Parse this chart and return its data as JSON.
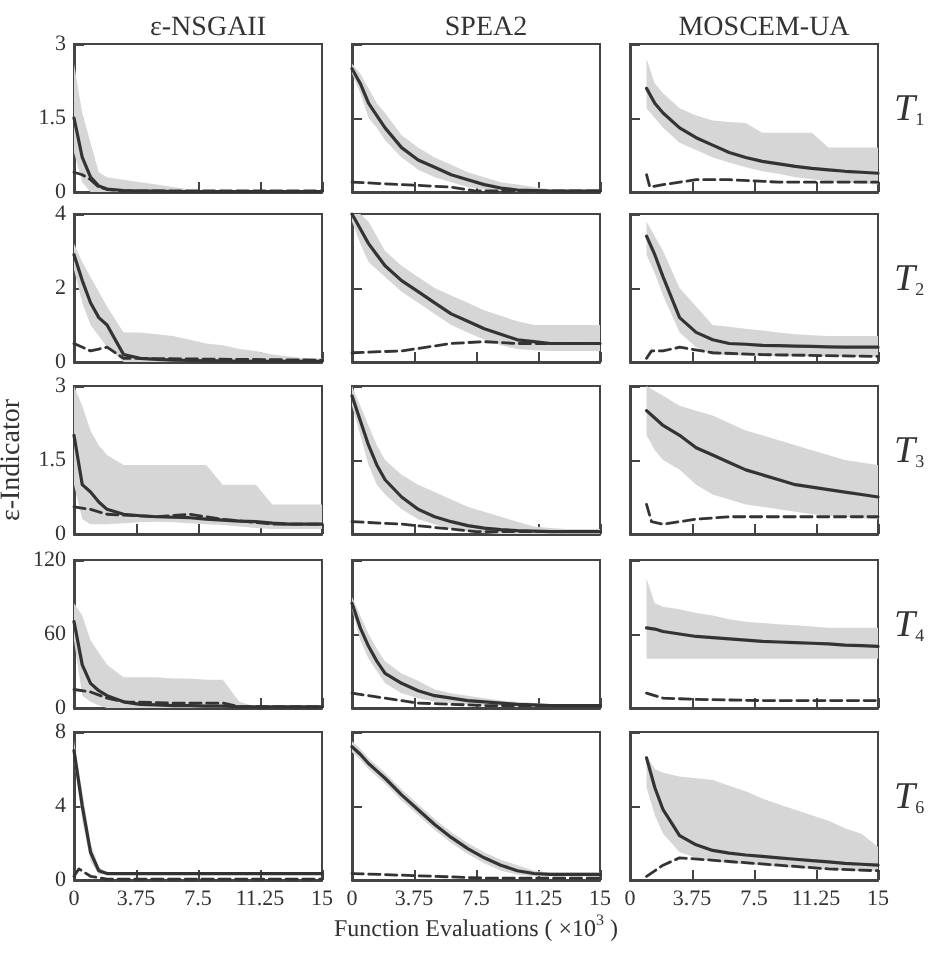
{
  "chart_data": [
    {
      "type": "line",
      "title": "ε-NSGAII",
      "tick_labels": "y",
      "x": [
        0,
        0.5,
        1,
        1.5,
        2,
        3,
        4,
        5,
        6,
        7,
        8,
        9,
        10,
        11,
        12,
        13,
        14,
        15
      ],
      "xlim": [
        0,
        15
      ],
      "xticks": [
        0,
        3.75,
        7.5,
        11.25,
        15
      ],
      "ylim": [
        0,
        3
      ],
      "yticks": [
        0,
        1.5,
        3
      ],
      "series": [
        {
          "color": "#333333",
          "values": [
            1.5,
            0.7,
            0.3,
            0.12,
            0.06,
            0.03,
            0.02,
            0.02,
            0.01,
            0.01,
            0.01,
            0.01,
            0.01,
            0.01,
            0.01,
            0.01,
            0.01,
            0.01
          ],
          "lower": [
            0.8,
            0.2,
            0,
            0,
            0,
            0,
            0,
            0,
            0,
            0,
            0,
            0,
            0,
            0,
            0,
            0,
            0,
            0
          ],
          "upper": [
            2.6,
            1.6,
            1.0,
            0.4,
            0.3,
            0.25,
            0.2,
            0.15,
            0.1,
            0.05,
            0.03,
            0.02,
            0.02,
            0.02,
            0.02,
            0.02,
            0.02,
            0.02
          ]
        },
        {
          "color": "#333333",
          "line_style": "dashed",
          "x": [
            0,
            0.5,
            1,
            1.5,
            2,
            3,
            15
          ],
          "values": [
            0.4,
            0.35,
            0.25,
            0.1,
            0.05,
            0.02,
            0.02
          ]
        }
      ]
    },
    {
      "type": "line",
      "title": "SPEA2",
      "tick_labels": false,
      "x": [
        0,
        0.5,
        1,
        1.5,
        2,
        3,
        4,
        5,
        6,
        7,
        8,
        9,
        10,
        11,
        12,
        13,
        14,
        15
      ],
      "xlim": [
        0,
        15
      ],
      "xticks": [
        0,
        3.75,
        7.5,
        11.25,
        15
      ],
      "ylim": [
        0,
        3
      ],
      "yticks": [
        0,
        1.5,
        3
      ],
      "series": [
        {
          "color": "#333333",
          "values": [
            2.5,
            2.2,
            1.8,
            1.55,
            1.3,
            0.9,
            0.65,
            0.5,
            0.35,
            0.25,
            0.15,
            0.08,
            0.04,
            0.03,
            0.02,
            0.02,
            0.02,
            0.02
          ],
          "lower": [
            2.4,
            2.0,
            1.5,
            1.3,
            1.05,
            0.7,
            0.45,
            0.3,
            0.2,
            0.1,
            0.05,
            0.02,
            0,
            0,
            0,
            0,
            0,
            0
          ],
          "upper": [
            2.6,
            2.4,
            2.1,
            1.8,
            1.6,
            1.15,
            0.9,
            0.7,
            0.55,
            0.4,
            0.3,
            0.2,
            0.15,
            0.1,
            0.05,
            0.03,
            0.03,
            0.03
          ]
        },
        {
          "color": "#333333",
          "line_style": "dashed",
          "x": [
            0,
            3,
            6,
            7.5,
            9,
            15
          ],
          "values": [
            0.2,
            0.15,
            0.1,
            0.02,
            0.02,
            0.02
          ]
        }
      ]
    },
    {
      "type": "line",
      "title": "MOSCEM-UA",
      "annotations": [
        "T$_{1}$"
      ],
      "tick_labels": false,
      "x": [
        1,
        1.5,
        2,
        3,
        4,
        5,
        6,
        7,
        8,
        9,
        10,
        11,
        12,
        13,
        14,
        15
      ],
      "xlim": [
        0,
        15
      ],
      "xticks": [
        0,
        3.75,
        7.5,
        11.25,
        15
      ],
      "ylim": [
        0,
        3
      ],
      "yticks": [
        0,
        1.5,
        3
      ],
      "series": [
        {
          "color": "#333333",
          "values": [
            2.1,
            1.8,
            1.6,
            1.3,
            1.1,
            0.95,
            0.8,
            0.7,
            0.62,
            0.57,
            0.52,
            0.48,
            0.45,
            0.42,
            0.4,
            0.38
          ],
          "lower": [
            1.7,
            1.5,
            1.3,
            1.0,
            0.85,
            0.7,
            0.6,
            0.5,
            0.42,
            0.37,
            0.3,
            0.26,
            0.22,
            0.2,
            0.17,
            0.15
          ],
          "upper": [
            2.7,
            2.2,
            2.0,
            1.7,
            1.55,
            1.45,
            1.42,
            1.4,
            1.2,
            1.2,
            1.2,
            1.2,
            0.9,
            0.9,
            0.9,
            0.9
          ]
        },
        {
          "color": "#333333",
          "line_style": "dashed",
          "x": [
            1,
            1.2,
            2,
            4,
            6,
            9,
            15
          ],
          "values": [
            0.35,
            0.1,
            0.15,
            0.25,
            0.25,
            0.2,
            0.2
          ]
        }
      ]
    },
    {
      "type": "line",
      "tick_labels": "y",
      "x": [
        0,
        0.5,
        1,
        1.5,
        2,
        3,
        4,
        5,
        6,
        7,
        8,
        9,
        10,
        11,
        12,
        13,
        14,
        15
      ],
      "xlim": [
        0,
        15
      ],
      "xticks": [
        0,
        3.75,
        7.5,
        11.25,
        15
      ],
      "ylim": [
        0,
        4
      ],
      "yticks": [
        0,
        2,
        4
      ],
      "series": [
        {
          "color": "#333333",
          "values": [
            2.9,
            2.2,
            1.6,
            1.2,
            1.0,
            0.2,
            0.1,
            0.07,
            0.05,
            0.04,
            0.03,
            0.03,
            0.02,
            0.02,
            0.02,
            0.02,
            0.02,
            0.02
          ],
          "lower": [
            2.5,
            1.6,
            1.0,
            0.7,
            0.4,
            0,
            0,
            0,
            0,
            0,
            0,
            0,
            0,
            0,
            0,
            0,
            0,
            0
          ],
          "upper": [
            3.2,
            2.7,
            2.3,
            1.9,
            1.5,
            0.8,
            0.8,
            0.75,
            0.7,
            0.6,
            0.5,
            0.45,
            0.35,
            0.3,
            0.2,
            0.15,
            0.1,
            0.1
          ]
        },
        {
          "color": "#333333",
          "line_style": "dashed",
          "x": [
            0,
            1,
            1.5,
            2,
            3,
            15
          ],
          "values": [
            0.5,
            0.3,
            0.35,
            0.4,
            0.1,
            0.05
          ]
        }
      ]
    },
    {
      "type": "line",
      "tick_labels": false,
      "x": [
        0,
        0.5,
        1,
        1.5,
        2,
        3,
        4,
        5,
        6,
        7,
        8,
        9,
        10,
        11,
        12,
        13,
        14,
        15
      ],
      "xlim": [
        0,
        15
      ],
      "xticks": [
        0,
        3.75,
        7.5,
        11.25,
        15
      ],
      "ylim": [
        0,
        4
      ],
      "yticks": [
        0,
        2,
        4
      ],
      "series": [
        {
          "color": "#333333",
          "values": [
            4,
            3.6,
            3.2,
            2.9,
            2.6,
            2.2,
            1.9,
            1.6,
            1.3,
            1.1,
            0.9,
            0.75,
            0.6,
            0.55,
            0.5,
            0.5,
            0.5,
            0.5
          ],
          "lower": [
            3.8,
            3.2,
            2.7,
            2.5,
            2.3,
            1.9,
            1.6,
            1.3,
            1.0,
            0.8,
            0.6,
            0.45,
            0.35,
            0.32,
            0.3,
            0.3,
            0.3,
            0.3
          ],
          "upper": [
            4,
            4,
            3.8,
            3.4,
            3.0,
            2.6,
            2.3,
            2.0,
            1.8,
            1.6,
            1.4,
            1.25,
            1.1,
            1.0,
            1.0,
            1.0,
            1.0,
            1.0
          ]
        },
        {
          "color": "#333333",
          "line_style": "dashed",
          "x": [
            0,
            3,
            6,
            8,
            10,
            15
          ],
          "values": [
            0.25,
            0.3,
            0.5,
            0.55,
            0.5,
            0.5
          ]
        }
      ]
    },
    {
      "type": "line",
      "annotations": [
        "T$_{2}$"
      ],
      "tick_labels": false,
      "x": [
        1,
        1.5,
        2,
        3,
        4,
        5,
        6,
        7,
        8,
        9,
        10,
        11,
        12,
        13,
        14,
        15
      ],
      "xlim": [
        0,
        15
      ],
      "xticks": [
        0,
        3.75,
        7.5,
        11.25,
        15
      ],
      "ylim": [
        0,
        4
      ],
      "yticks": [
        0,
        2,
        4
      ],
      "series": [
        {
          "color": "#333333",
          "values": [
            3.4,
            2.9,
            2.3,
            1.2,
            0.8,
            0.6,
            0.5,
            0.48,
            0.45,
            0.44,
            0.43,
            0.42,
            0.41,
            0.4,
            0.4,
            0.4
          ],
          "lower": [
            2.9,
            2.4,
            1.8,
            0.8,
            0.4,
            0.2,
            0.18,
            0.17,
            0.16,
            0.15,
            0.15,
            0.15,
            0.15,
            0.15,
            0.15,
            0.15
          ],
          "upper": [
            3.8,
            3.4,
            3.0,
            2.0,
            1.5,
            1.0,
            0.95,
            0.9,
            0.85,
            0.8,
            0.75,
            0.72,
            0.7,
            0.7,
            0.7,
            0.7
          ]
        },
        {
          "color": "#333333",
          "line_style": "dashed",
          "x": [
            1,
            1.3,
            2,
            3,
            5,
            8,
            15
          ],
          "values": [
            0.1,
            0.3,
            0.3,
            0.4,
            0.25,
            0.2,
            0.15
          ]
        }
      ]
    },
    {
      "type": "line",
      "ylabel": "ε-Indicator",
      "tick_labels": "y",
      "x": [
        0,
        0.5,
        1,
        1.5,
        2,
        3,
        4,
        5,
        6,
        7,
        8,
        9,
        10,
        11,
        12,
        13,
        14,
        15
      ],
      "xlim": [
        0,
        15
      ],
      "xticks": [
        0,
        3.75,
        7.5,
        11.25,
        15
      ],
      "ylim": [
        0,
        3
      ],
      "yticks": [
        0,
        1.5,
        3
      ],
      "series": [
        {
          "color": "#333333",
          "values": [
            2.0,
            1.0,
            0.85,
            0.65,
            0.5,
            0.4,
            0.37,
            0.35,
            0.34,
            0.33,
            0.3,
            0.28,
            0.26,
            0.25,
            0.22,
            0.2,
            0.2,
            0.2
          ],
          "lower": [
            1.0,
            0.3,
            0.2,
            0.2,
            0.2,
            0.22,
            0.24,
            0.25,
            0.24,
            0.22,
            0.2,
            0.18,
            0.15,
            0.12,
            0.1,
            0.1,
            0.1,
            0.1
          ],
          "upper": [
            3.0,
            2.6,
            2.1,
            1.8,
            1.6,
            1.4,
            1.4,
            1.4,
            1.4,
            1.4,
            1.4,
            1.0,
            1.0,
            1.0,
            0.6,
            0.6,
            0.6,
            0.6
          ]
        },
        {
          "color": "#333333",
          "line_style": "dashed",
          "x": [
            0,
            1,
            2,
            5,
            7,
            9,
            12,
            15
          ],
          "values": [
            0.55,
            0.5,
            0.4,
            0.35,
            0.4,
            0.3,
            0.2,
            0.2
          ]
        }
      ]
    },
    {
      "type": "line",
      "tick_labels": false,
      "x": [
        0,
        0.5,
        1,
        1.5,
        2,
        3,
        4,
        5,
        6,
        7,
        8,
        9,
        10,
        11,
        12,
        13,
        14,
        15
      ],
      "xlim": [
        0,
        15
      ],
      "xticks": [
        0,
        3.75,
        7.5,
        11.25,
        15
      ],
      "ylim": [
        0,
        3
      ],
      "yticks": [
        0,
        1.5,
        3
      ],
      "series": [
        {
          "color": "#333333",
          "values": [
            2.8,
            2.3,
            1.8,
            1.4,
            1.1,
            0.75,
            0.5,
            0.35,
            0.25,
            0.17,
            0.12,
            0.09,
            0.07,
            0.06,
            0.05,
            0.05,
            0.05,
            0.05
          ],
          "lower": [
            2.6,
            2.0,
            1.4,
            1.0,
            0.8,
            0.5,
            0.3,
            0.2,
            0.1,
            0.05,
            0.02,
            0,
            0,
            0,
            0,
            0,
            0,
            0
          ],
          "upper": [
            3.0,
            2.6,
            2.2,
            1.8,
            1.5,
            1.2,
            1.0,
            0.85,
            0.7,
            0.55,
            0.45,
            0.35,
            0.25,
            0.15,
            0.12,
            0.1,
            0.1,
            0.1
          ]
        },
        {
          "color": "#333333",
          "line_style": "dashed",
          "x": [
            0,
            3,
            6,
            7.5,
            15
          ],
          "values": [
            0.25,
            0.2,
            0.1,
            0.05,
            0.05
          ]
        }
      ]
    },
    {
      "type": "line",
      "annotations": [
        "T$_{3}$"
      ],
      "tick_labels": false,
      "x": [
        1,
        1.5,
        2,
        3,
        4,
        5,
        6,
        7,
        8,
        9,
        10,
        11,
        12,
        13,
        14,
        15
      ],
      "xlim": [
        0,
        15
      ],
      "xticks": [
        0,
        3.75,
        7.5,
        11.25,
        15
      ],
      "ylim": [
        0,
        3
      ],
      "yticks": [
        0,
        1.5,
        3
      ],
      "series": [
        {
          "color": "#333333",
          "values": [
            2.5,
            2.35,
            2.2,
            2.0,
            1.75,
            1.6,
            1.45,
            1.3,
            1.2,
            1.1,
            1.0,
            0.95,
            0.9,
            0.85,
            0.8,
            0.75
          ],
          "lower": [
            2.0,
            1.7,
            1.5,
            1.3,
            1.0,
            0.8,
            0.7,
            0.6,
            0.55,
            0.5,
            0.45,
            0.4,
            0.37,
            0.35,
            0.32,
            0.3
          ],
          "upper": [
            3.0,
            2.9,
            2.8,
            2.6,
            2.5,
            2.4,
            2.25,
            2.1,
            2.0,
            1.9,
            1.8,
            1.7,
            1.6,
            1.5,
            1.45,
            1.4
          ]
        },
        {
          "color": "#333333",
          "line_style": "dashed",
          "x": [
            1,
            1.3,
            2,
            4,
            6,
            10,
            15
          ],
          "values": [
            0.6,
            0.25,
            0.2,
            0.3,
            0.35,
            0.35,
            0.35
          ]
        }
      ]
    },
    {
      "type": "line",
      "tick_labels": "y",
      "x": [
        0,
        0.5,
        1,
        1.5,
        2,
        3,
        4,
        5,
        6,
        7,
        8,
        9,
        10,
        11,
        12,
        13,
        14,
        15
      ],
      "xlim": [
        0,
        15
      ],
      "xticks": [
        0,
        3.75,
        7.5,
        11.25,
        15
      ],
      "ylim": [
        0,
        120
      ],
      "yticks": [
        0,
        60,
        120
      ],
      "series": [
        {
          "color": "#333333",
          "values": [
            70,
            35,
            20,
            14,
            10,
            5,
            3,
            2.5,
            2,
            2,
            1.5,
            1.5,
            1,
            1,
            1,
            1,
            1,
            1
          ],
          "lower": [
            55,
            10,
            5,
            2,
            0,
            0,
            0,
            0,
            0,
            0,
            0,
            0,
            0,
            0,
            0,
            0,
            0,
            0
          ],
          "upper": [
            85,
            75,
            55,
            45,
            35,
            25,
            25,
            25,
            24,
            24,
            23,
            23,
            5,
            1,
            1,
            1,
            1,
            1
          ]
        },
        {
          "color": "#333333",
          "line_style": "dashed",
          "x": [
            0,
            1,
            2,
            3,
            6,
            9,
            10,
            15
          ],
          "values": [
            15,
            13,
            8,
            5,
            4,
            4,
            1,
            1
          ]
        }
      ]
    },
    {
      "type": "line",
      "tick_labels": false,
      "x": [
        0,
        0.5,
        1,
        1.5,
        2,
        3,
        4,
        5,
        6,
        7,
        8,
        9,
        10,
        11,
        12,
        13,
        14,
        15
      ],
      "xlim": [
        0,
        15
      ],
      "xticks": [
        0,
        3.75,
        7.5,
        11.25,
        15
      ],
      "ylim": [
        0,
        120
      ],
      "yticks": [
        0,
        60,
        120
      ],
      "series": [
        {
          "color": "#333333",
          "values": [
            85,
            65,
            50,
            38,
            28,
            20,
            14,
            10,
            8,
            6,
            5,
            4,
            3,
            2.5,
            2,
            2,
            2,
            2
          ],
          "lower": [
            80,
            55,
            40,
            30,
            20,
            12,
            8,
            5,
            4,
            3,
            2,
            1.5,
            1,
            1,
            1,
            1,
            1,
            1
          ],
          "upper": [
            90,
            75,
            60,
            48,
            38,
            28,
            22,
            15,
            12,
            10,
            8,
            6,
            5,
            4,
            3,
            3,
            3,
            3
          ]
        },
        {
          "color": "#333333",
          "line_style": "dashed",
          "x": [
            0,
            2,
            4,
            8,
            15
          ],
          "values": [
            12,
            8,
            4,
            2,
            2
          ]
        }
      ]
    },
    {
      "type": "line",
      "annotations": [
        "T$_{4}$"
      ],
      "tick_labels": false,
      "x": [
        1,
        1.5,
        2,
        3,
        4,
        5,
        6,
        7,
        8,
        9,
        10,
        11,
        12,
        13,
        14,
        15
      ],
      "xlim": [
        0,
        15
      ],
      "xticks": [
        0,
        3.75,
        7.5,
        11.25,
        15
      ],
      "ylim": [
        0,
        120
      ],
      "yticks": [
        0,
        60,
        120
      ],
      "series": [
        {
          "color": "#333333",
          "values": [
            65,
            64,
            62,
            60,
            58,
            57,
            56,
            55,
            54,
            53.5,
            53,
            52.5,
            52,
            51,
            50.5,
            50
          ],
          "lower": [
            40,
            40,
            40,
            40,
            40,
            40,
            40,
            40,
            40,
            40,
            40,
            40,
            40,
            40,
            40,
            40
          ],
          "upper": [
            105,
            85,
            82,
            80,
            77,
            75,
            72,
            70,
            69,
            68,
            67,
            66,
            65,
            65,
            65,
            65
          ]
        },
        {
          "color": "#333333",
          "line_style": "dashed",
          "x": [
            1,
            2,
            4,
            8,
            15
          ],
          "values": [
            12,
            8,
            7,
            6,
            6
          ]
        }
      ]
    },
    {
      "type": "line",
      "x": [
        0,
        0.5,
        1,
        1.5,
        2,
        3,
        4,
        5,
        6,
        7,
        8,
        9,
        10,
        11,
        12,
        13,
        14,
        15
      ],
      "xlim": [
        0,
        15
      ],
      "xticks": [
        0,
        3.75,
        7.5,
        11.25,
        15
      ],
      "ylim": [
        0,
        8
      ],
      "yticks": [
        0,
        4,
        8
      ],
      "series": [
        {
          "color": "#333333",
          "values": [
            7,
            4,
            1.5,
            0.5,
            0.35,
            0.35,
            0.35,
            0.35,
            0.35,
            0.35,
            0.35,
            0.35,
            0.35,
            0.35,
            0.35,
            0.35,
            0.35,
            0.35
          ],
          "lower": [
            6.5,
            3.2,
            1,
            0.3,
            0.3,
            0.3,
            0.3,
            0.3,
            0.3,
            0.3,
            0.3,
            0.3,
            0.3,
            0.3,
            0.3,
            0.3,
            0.3,
            0.3
          ],
          "upper": [
            7.5,
            4.8,
            2,
            0.7,
            0.4,
            0.4,
            0.4,
            0.4,
            0.4,
            0.4,
            0.4,
            0.4,
            0.4,
            0.4,
            0.4,
            0.4,
            0.4,
            0.4
          ]
        },
        {
          "color": "#333333",
          "line_style": "dashed",
          "x": [
            0,
            0.3,
            1,
            2,
            15
          ],
          "values": [
            0.2,
            0.6,
            0.2,
            0.05,
            0.05
          ]
        }
      ]
    },
    {
      "type": "line",
      "xlabel": "Function Evaluations ( ×10$^{3}$ )",
      "tick_labels": "x",
      "x": [
        0,
        0.5,
        1,
        1.5,
        2,
        3,
        4,
        5,
        6,
        7,
        8,
        9,
        10,
        11,
        12,
        13,
        14,
        15
      ],
      "xlim": [
        0,
        15
      ],
      "xticks": [
        0,
        3.75,
        7.5,
        11.25,
        15
      ],
      "ylim": [
        0,
        8
      ],
      "yticks": [
        0,
        4,
        8
      ],
      "series": [
        {
          "color": "#333333",
          "values": [
            7.2,
            6.8,
            6.3,
            5.9,
            5.5,
            4.6,
            3.8,
            3.0,
            2.3,
            1.7,
            1.2,
            0.8,
            0.5,
            0.35,
            0.3,
            0.3,
            0.3,
            0.3
          ],
          "lower": [
            6.9,
            6.5,
            6.0,
            5.6,
            5.2,
            4.3,
            3.5,
            2.7,
            2.0,
            1.4,
            0.9,
            0.5,
            0.3,
            0.2,
            0.2,
            0.2,
            0.2,
            0.2
          ],
          "upper": [
            7.5,
            7.1,
            6.6,
            6.2,
            5.8,
            4.9,
            4.1,
            3.3,
            2.6,
            2.0,
            1.5,
            1.1,
            0.8,
            0.5,
            0.4,
            0.4,
            0.4,
            0.4
          ]
        },
        {
          "color": "#333333",
          "line_style": "dashed",
          "x": [
            0,
            5,
            8,
            15
          ],
          "values": [
            0.35,
            0.2,
            0.1,
            0.1
          ]
        }
      ]
    },
    {
      "type": "line",
      "annotations": [
        "T$_{6}$"
      ],
      "tick_labels": "x",
      "x": [
        1,
        1.5,
        2,
        3,
        4,
        5,
        6,
        7,
        8,
        9,
        10,
        11,
        12,
        13,
        14,
        15
      ],
      "xlim": [
        0,
        15
      ],
      "xticks": [
        0,
        3.75,
        7.5,
        11.25,
        15
      ],
      "ylim": [
        0,
        8
      ],
      "yticks": [
        0,
        4,
        8
      ],
      "series": [
        {
          "color": "#333333",
          "values": [
            6.6,
            5,
            3.8,
            2.4,
            1.9,
            1.6,
            1.45,
            1.35,
            1.28,
            1.2,
            1.12,
            1.05,
            0.98,
            0.9,
            0.85,
            0.8
          ],
          "lower": [
            5,
            3.5,
            2.5,
            1.5,
            1.2,
            1.0,
            0.9,
            0.85,
            0.8,
            0.7,
            0.65,
            0.6,
            0.55,
            0.52,
            0.5,
            0.5
          ],
          "upper": [
            6.7,
            6.0,
            5.8,
            5.6,
            5.5,
            5.4,
            5.1,
            4.8,
            4.4,
            4.1,
            3.8,
            3.5,
            3.2,
            2.8,
            2.5,
            1.8
          ]
        },
        {
          "color": "#333333",
          "line_style": "dashed",
          "x": [
            1,
            2,
            3,
            6,
            9,
            12,
            15
          ],
          "values": [
            0.2,
            0.8,
            1.2,
            1.0,
            0.8,
            0.6,
            0.5
          ]
        }
      ]
    }
  ]
}
